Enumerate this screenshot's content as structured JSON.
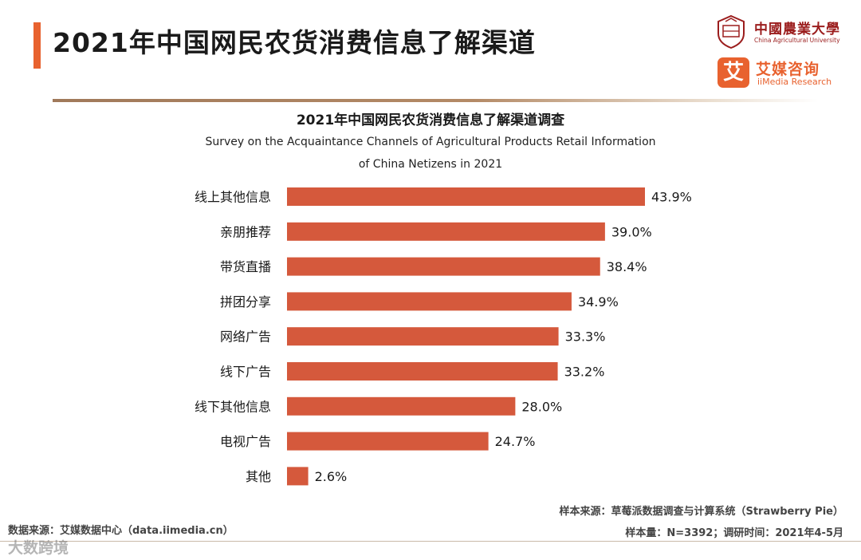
{
  "header": {
    "title": "2021年中国网民农货消费信息了解渠道",
    "accent_color": "#e8622f"
  },
  "logos": {
    "cau_cn": "中國農業大學",
    "cau_en": "China Agricultural University",
    "iimedia_mark": "艾",
    "iimedia_cn": "艾媒咨询",
    "iimedia_en": "iiMedia Research"
  },
  "chart_data": {
    "type": "bar",
    "orientation": "horizontal",
    "title": "2021年中国网民农货消费信息了解渠道调查",
    "subtitle_line1": "Survey on the Acquaintance Channels of Agricultural Products Retail Information",
    "subtitle_line2": "of China Netizens in 2021",
    "categories": [
      "线上其他信息",
      "亲朋推荐",
      "带货直播",
      "拼团分享",
      "网络广告",
      "线下广告",
      "线下其他信息",
      "电视广告",
      "其他"
    ],
    "values": [
      43.9,
      39.0,
      38.4,
      34.9,
      33.3,
      33.2,
      28.0,
      24.7,
      2.6
    ],
    "value_labels": [
      "43.9%",
      "39.0%",
      "38.4%",
      "34.9%",
      "33.3%",
      "33.2%",
      "28.0%",
      "24.7%",
      "2.6%"
    ],
    "unit": "%",
    "bar_color": "#d5593c",
    "xlim": [
      0,
      43.9
    ]
  },
  "footer": {
    "source_right_1": "样本来源：草莓派数据调查与计算系统（Strawberry Pie）",
    "source_right_2": "样本量：N=3392；调研时间：2021年4-5月",
    "source_left": "数据来源：艾媒数据中心（data.iimedia.cn）",
    "watermark": "大数跨境"
  }
}
